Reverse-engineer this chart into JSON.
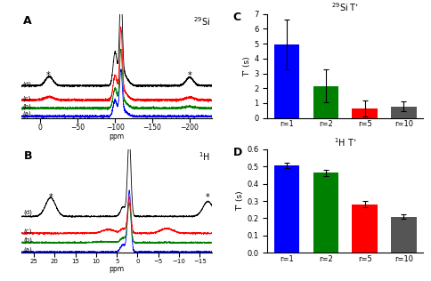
{
  "panel_C": {
    "title": "$^{29}$Si T’",
    "categories": [
      "r=1",
      "r=2",
      "r=5",
      "r=10"
    ],
    "values": [
      4.95,
      2.15,
      0.62,
      0.78
    ],
    "errors": [
      1.65,
      1.1,
      0.55,
      0.35
    ],
    "colors": [
      "blue",
      "green",
      "red",
      "#555555"
    ],
    "ylim": [
      0,
      7
    ],
    "yticks": [
      0,
      1,
      2,
      3,
      4,
      5,
      6,
      7
    ],
    "ylabel": "T’ (s)"
  },
  "panel_D": {
    "title": "$^{1}$H T’",
    "categories": [
      "r=1",
      "r=2",
      "r=5",
      "r=10"
    ],
    "values": [
      0.505,
      0.462,
      0.28,
      0.21
    ],
    "errors": [
      0.016,
      0.016,
      0.018,
      0.013
    ],
    "colors": [
      "blue",
      "green",
      "red",
      "#555555"
    ],
    "ylim": [
      0,
      0.6
    ],
    "yticks": [
      0,
      0.1,
      0.2,
      0.3,
      0.4,
      0.5,
      0.6
    ],
    "ylabel": "T’ (s)"
  },
  "spectra_colors": [
    "blue",
    "green",
    "red",
    "black"
  ],
  "spectra_labels": [
    "(a)",
    "(b)",
    "(c)",
    "(d)"
  ]
}
